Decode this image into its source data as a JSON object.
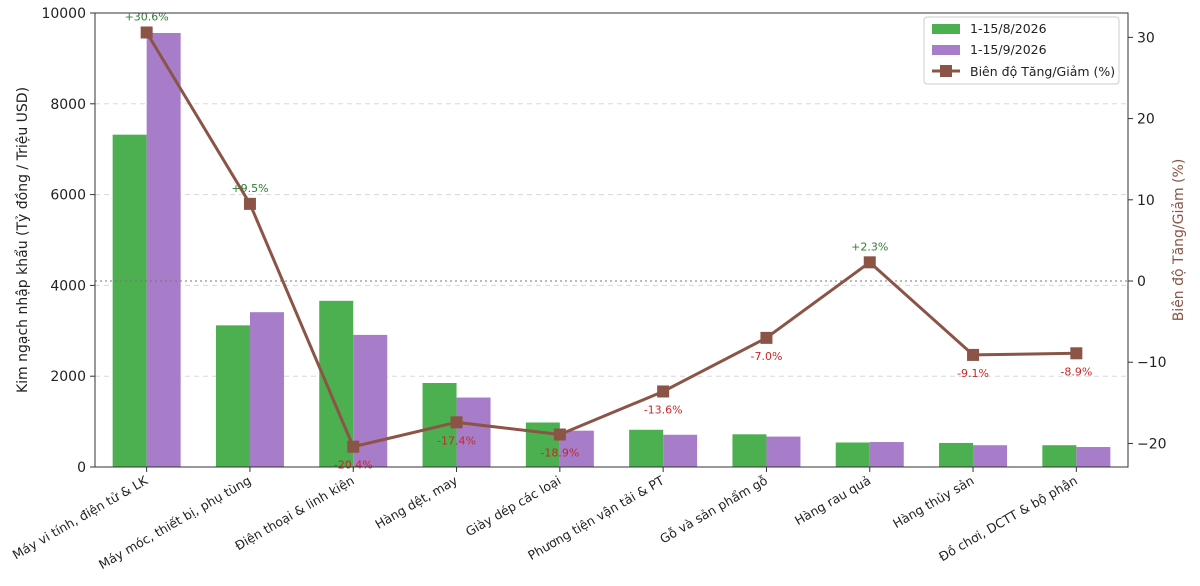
{
  "chart_data": {
    "type": "bar+line",
    "categories": [
      "Máy vi tính, điện tử & LK",
      "Máy móc, thiết bị, phụ tùng",
      "Điện thoại & linh kiện",
      "Hàng dệt, may",
      "Giày dép các loại",
      "Phương tiện vận tải & PT",
      "Gỗ và sản phẩm gỗ",
      "Hàng rau quả",
      "Hàng thủy sản",
      "Đồ chơi, DCTT & bộ phận"
    ],
    "series": [
      {
        "name": "1-15/8/2026",
        "type": "bar",
        "axis": "left",
        "color": "#4caf50",
        "values": [
          7320,
          3120,
          3660,
          1850,
          980,
          820,
          720,
          540,
          530,
          480
        ]
      },
      {
        "name": "1-15/9/2026",
        "type": "bar",
        "axis": "left",
        "color": "#a77dc9",
        "values": [
          9560,
          3410,
          2910,
          1530,
          800,
          710,
          670,
          550,
          480,
          440
        ]
      },
      {
        "name": "Biên độ Tăng/Giảm (%)",
        "type": "line",
        "axis": "right",
        "color": "#8b5446",
        "values": [
          30.6,
          9.5,
          -20.4,
          -17.4,
          -18.9,
          -13.6,
          -7.0,
          2.3,
          -9.1,
          -8.9
        ],
        "labels": [
          "+30.6%",
          "+9.5%",
          "-20.4%",
          "-17.4%",
          "-18.9%",
          "-13.6%",
          "-7.0%",
          "+2.3%",
          "-9.1%",
          "-8.9%"
        ]
      }
    ],
    "ylabel_left": "Kim ngạch nhập khẩu (Tỷ đồng / Triệu USD)",
    "ylabel_right": "Biên độ Tăng/Giảm (%)",
    "ylim_left": [
      0,
      10000
    ],
    "yticks_left": [
      "0",
      "2000",
      "4000",
      "6000",
      "8000",
      "10000"
    ],
    "ylim_right": [
      -22.9,
      33
    ],
    "yticks_right": [
      "−20",
      "−10",
      "0",
      "10",
      "20",
      "30"
    ],
    "grid": "horizontal dashed",
    "legend_position": "top-right",
    "positive_label_color": "#2e7d32",
    "negative_label_color": "#c62828"
  }
}
